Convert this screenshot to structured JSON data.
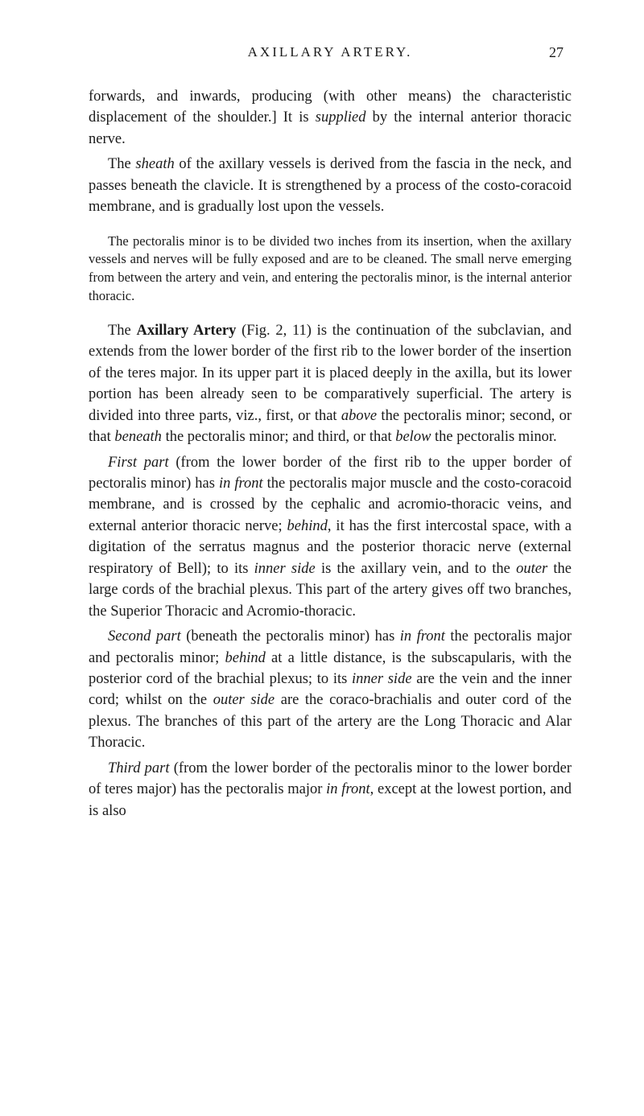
{
  "header": {
    "title": "AXILLARY ARTERY.",
    "pageNumber": "27"
  },
  "paragraphs": {
    "p1_a": "forwards, and inwards, producing (with other means) the characteristic displacement of the shoulder.] It is ",
    "p1_b": "supplied",
    "p1_c": " by the internal anterior thoracic nerve.",
    "p2_a": "The ",
    "p2_b": "sheath",
    "p2_c": " of the axillary vessels is derived from the fascia in the neck, and passes beneath the clavicle. It is strengthened by a process of the costo-coracoid membrane, and is gradually lost upon the vessels.",
    "p3": "The pectoralis minor is to be divided two inches from its insertion, when the axillary vessels and nerves will be fully exposed and are to be cleaned. The small nerve emerging from between the artery and vein, and entering the pectoralis minor, is the internal anterior thoracic.",
    "p4_a": "The ",
    "p4_b": "Axillary Artery",
    "p4_c": " (Fig. 2, 11) is the continuation of the subclavian, and extends from the lower border of the first rib to the lower border of the insertion of the teres major. In its upper part it is placed deeply in the axilla, but its lower portion has been already seen to be comparatively superficial. The artery is divided into three parts, viz., first, or that ",
    "p4_d": "above",
    "p4_e": " the pectoralis minor; second, or that ",
    "p4_f": "beneath",
    "p4_g": " the pectoralis minor; and third, or that ",
    "p4_h": "below",
    "p4_i": " the pectoralis minor.",
    "p5_a": "First part",
    "p5_b": " (from the lower border of the first rib to the upper border of pectoralis minor) has ",
    "p5_c": "in front",
    "p5_d": " the pectoralis major muscle and the costo-coracoid membrane, and is crossed by the cephalic and acromio-thoracic veins, and external anterior thoracic nerve; ",
    "p5_e": "behind",
    "p5_f": ", it has the first intercostal space, with a digitation of the serratus magnus and the posterior thoracic nerve (external respiratory of Bell); to its ",
    "p5_g": "inner side",
    "p5_h": " is the axillary vein, and to the ",
    "p5_i": "outer",
    "p5_j": " the large cords of the brachial plexus. This part of the artery gives off two branches, the Superior Thoracic and Acromio-thoracic.",
    "p6_a": "Second part",
    "p6_b": " (beneath the pectoralis minor) has ",
    "p6_c": "in front",
    "p6_d": " the pectoralis major and pectoralis minor; ",
    "p6_e": "behind",
    "p6_f": " at a little distance, is the subscapularis, with the posterior cord of the brachial plexus; to its ",
    "p6_g": "inner side",
    "p6_h": " are the vein and the inner cord; whilst on the ",
    "p6_i": "outer side",
    "p6_j": " are the coraco-brachialis and outer cord of the plexus. The branches of this part of the artery are the Long Thoracic and Alar Thoracic.",
    "p7_a": "Third part",
    "p7_b": " (from the lower border of the pectoralis minor to the lower border of teres major) has the pectoralis major ",
    "p7_c": "in front",
    "p7_d": ", except at the lowest portion, and is also"
  }
}
